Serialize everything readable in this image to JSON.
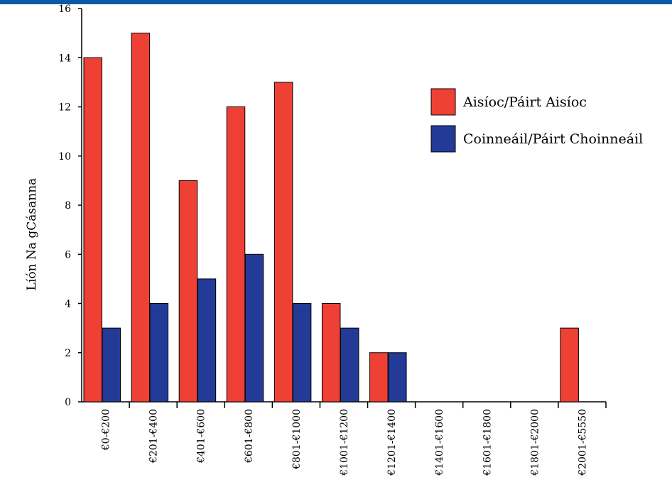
{
  "chart_data": {
    "type": "bar",
    "categories": [
      "€0-€200",
      "€201-€400",
      "€401-€600",
      "€601-€800",
      "€801-€1000",
      "€1001-€1200",
      "€1201-€1400",
      "€1401-€1600",
      "€1601-€1800",
      "€1801-€2000",
      "€2001-€5550"
    ],
    "series": [
      {
        "name": "Aisíoc/Páirt Aisíoc",
        "color": "#ee4035",
        "values": [
          14,
          15,
          9,
          12,
          13,
          4,
          2,
          0,
          0,
          0,
          3
        ]
      },
      {
        "name": "Coinneáil/Páirt Choinneáil",
        "color": "#233a96",
        "values": [
          3,
          4,
          5,
          6,
          4,
          3,
          2,
          0,
          0,
          0,
          0
        ]
      }
    ],
    "ylabel": "Líón Na gCásanna",
    "ylim": [
      0,
      16
    ],
    "yticks": [
      0,
      2,
      4,
      6,
      8,
      10,
      12,
      14,
      16
    ],
    "legend_position": "top-right",
    "grid": false
  }
}
